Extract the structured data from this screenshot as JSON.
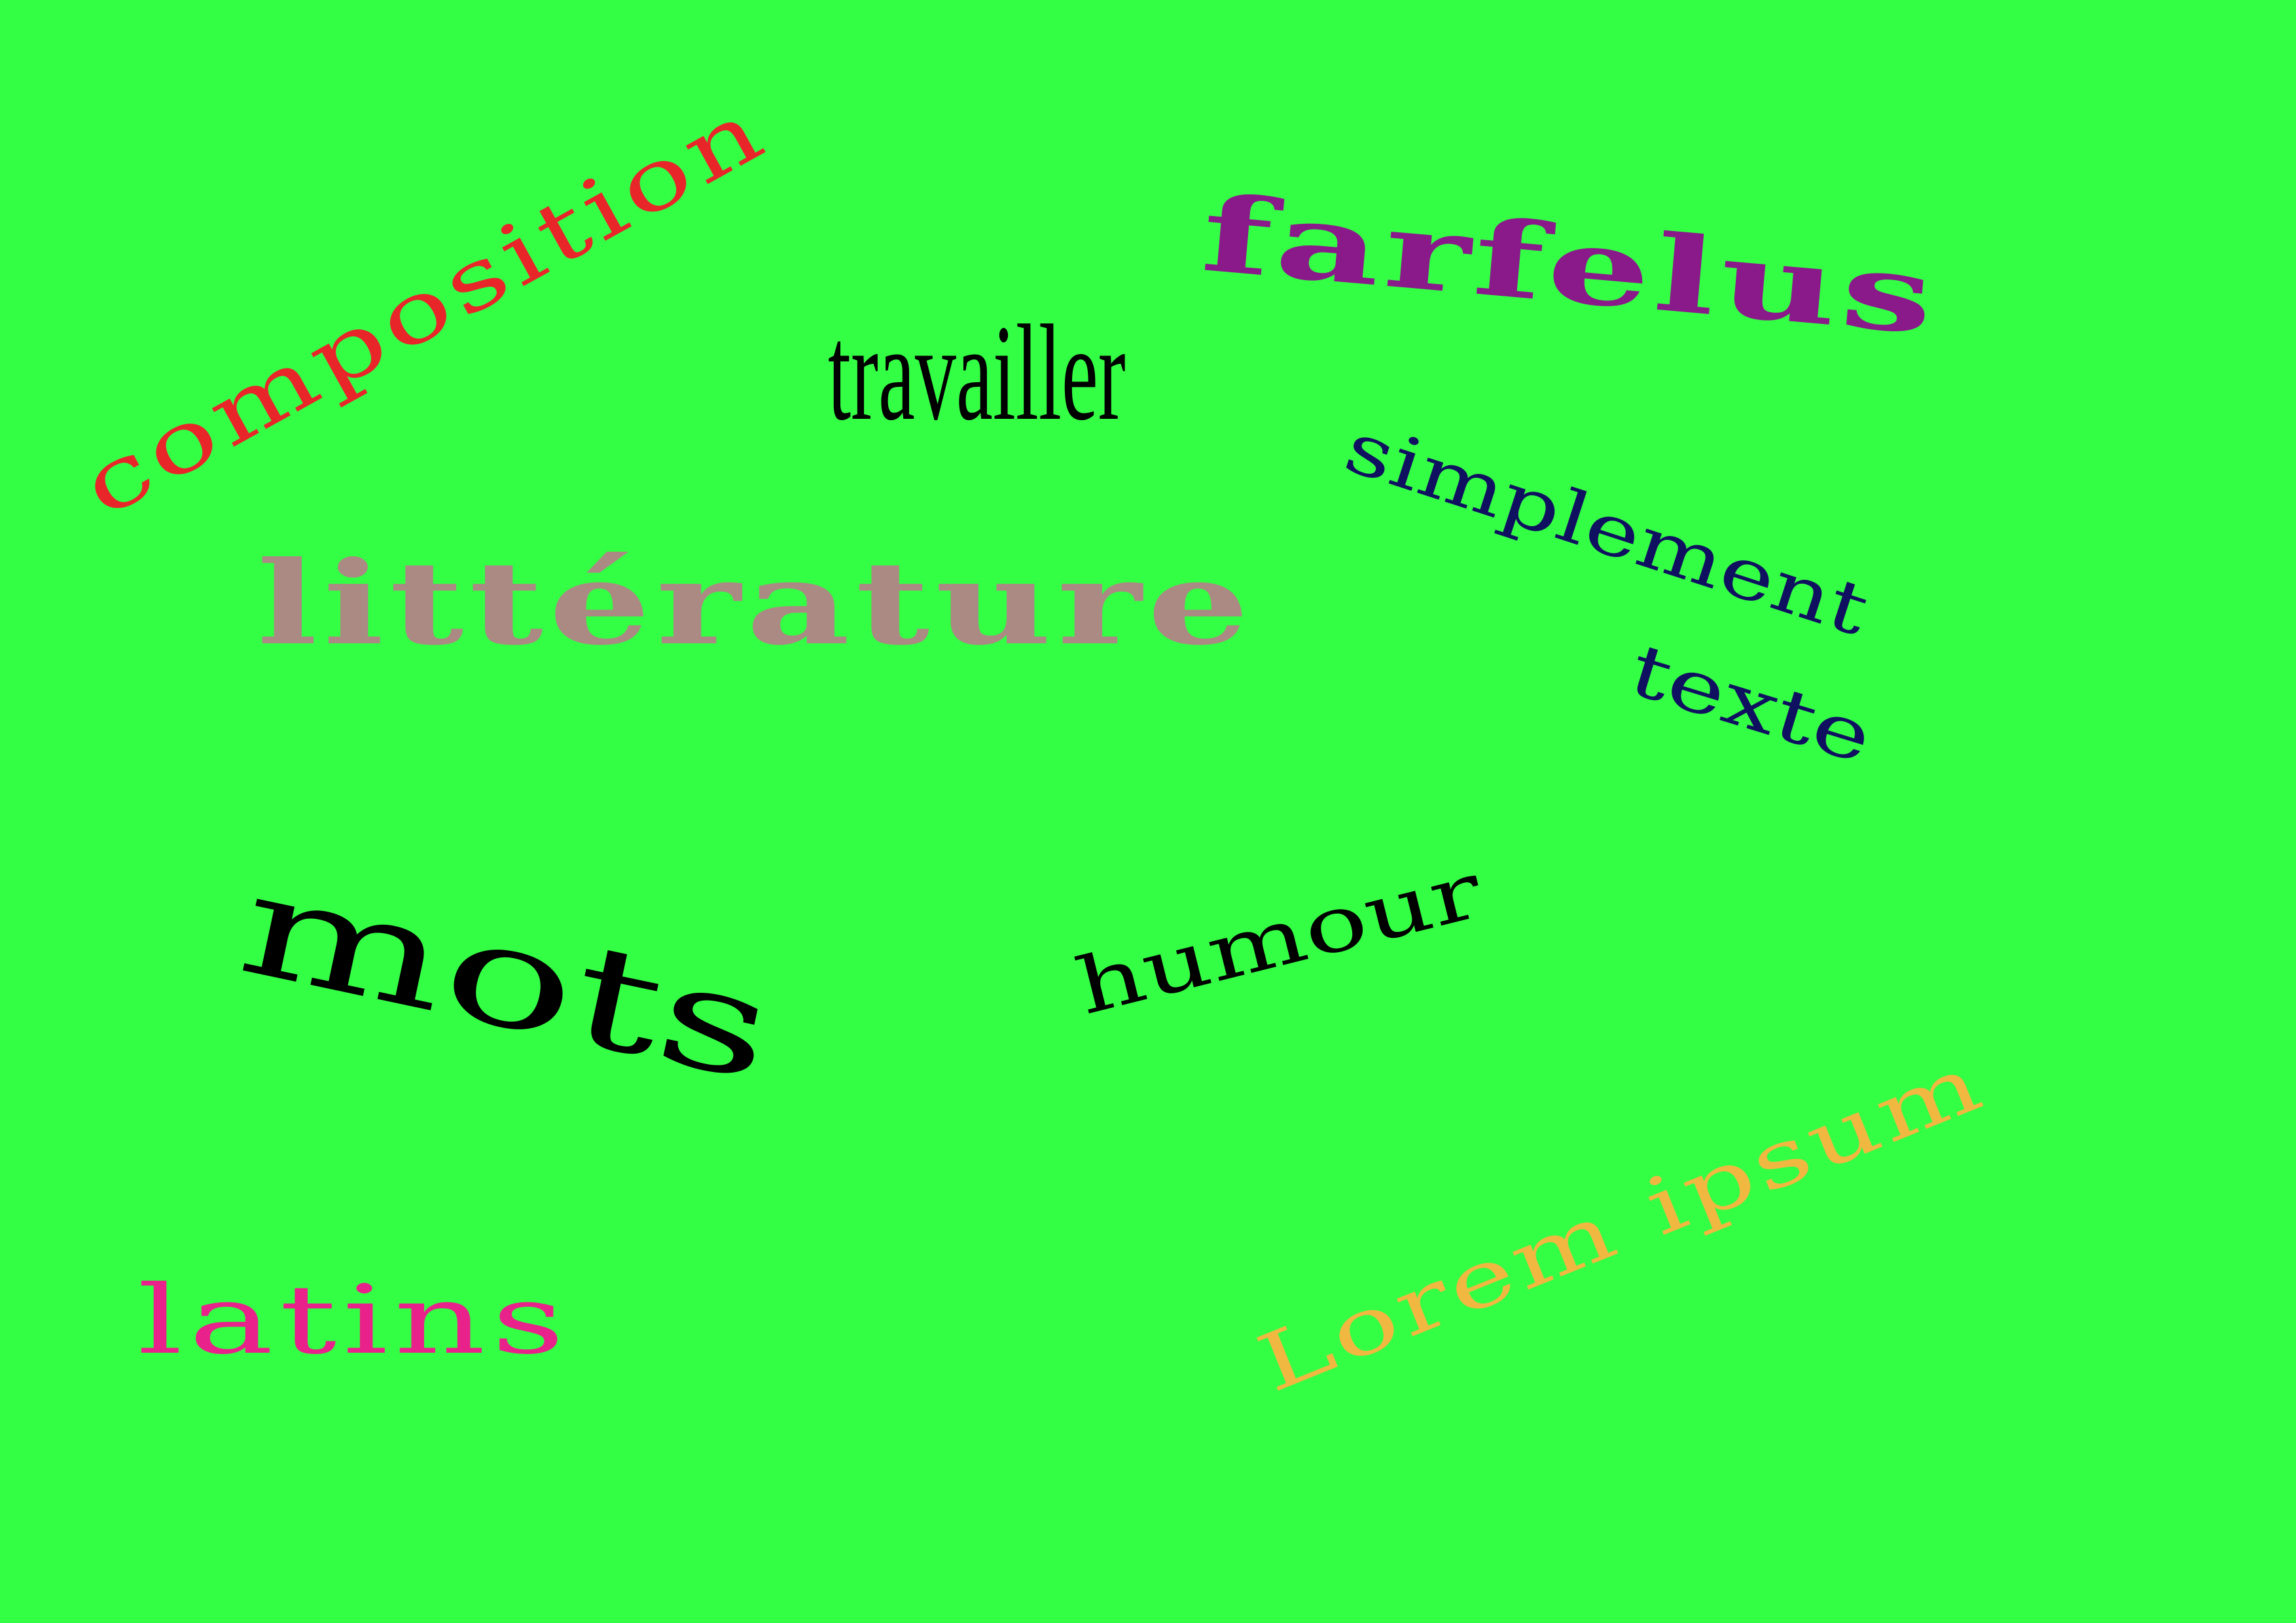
{
  "background_color": "#33ff44",
  "words": {
    "composition": {
      "text": "composition",
      "color": "#e8262a"
    },
    "travailler": {
      "text": "travailler",
      "color": "#000000"
    },
    "farfelus": {
      "text": "farfelus",
      "color": "#8a1a8a"
    },
    "simplement": {
      "text": "simplement",
      "color": "#101060"
    },
    "litterature": {
      "text": "littérature",
      "color": "#aa8a82"
    },
    "texte": {
      "text": "texte",
      "color": "#101060"
    },
    "mots": {
      "text": "mots",
      "color": "#000000"
    },
    "humour": {
      "text": "humour",
      "color": "#000000"
    },
    "lorem": {
      "text": "Lorem ipsum",
      "color": "#f0b840"
    },
    "latins": {
      "text": "latins",
      "color": "#e8228a"
    }
  }
}
